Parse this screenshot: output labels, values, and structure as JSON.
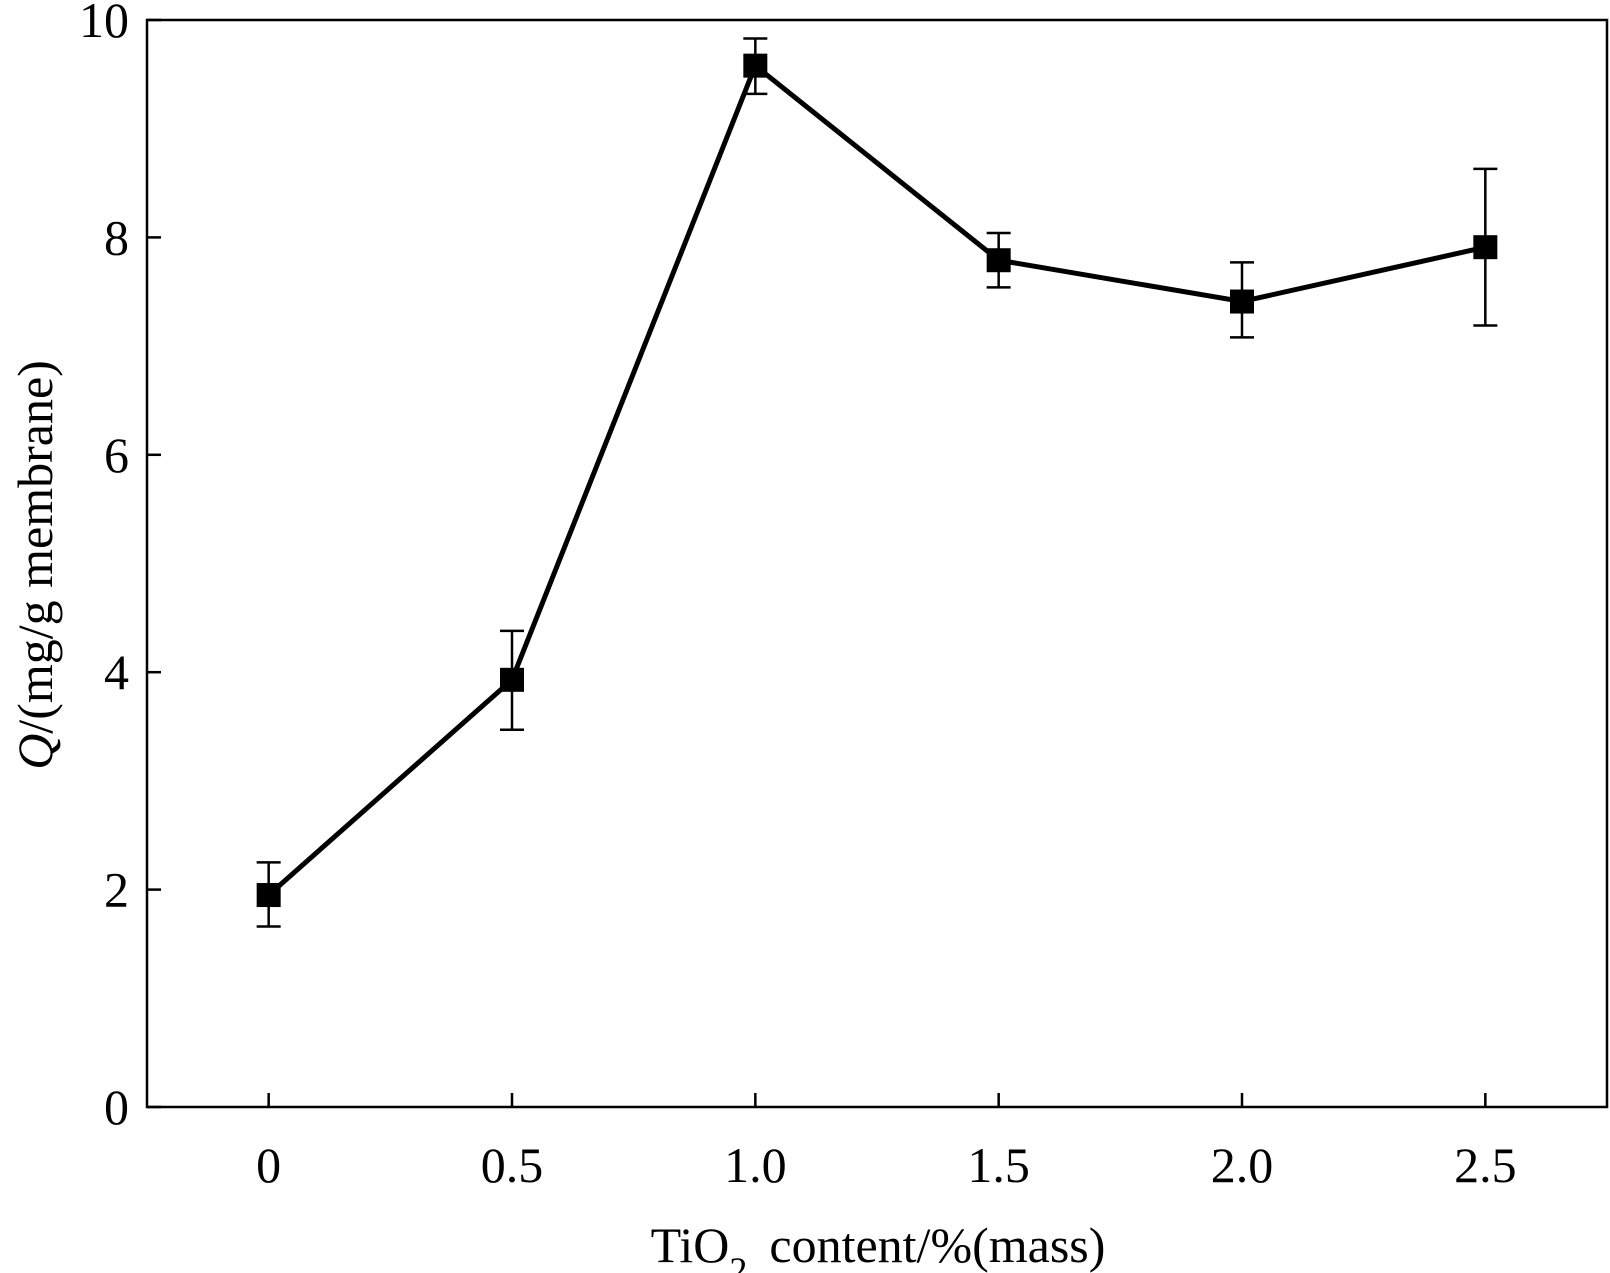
{
  "chart_data": {
    "type": "line",
    "title": "",
    "xlabel": "TiO2 content/%(mass)",
    "xlabel_parts": {
      "prefix": "TiO",
      "subscript": "2",
      "suffix": "content/%(mass)"
    },
    "ylabel": "Q/(mg/g membrane)",
    "ylabel_parts": {
      "variable": "Q",
      "unit": "/(mg/g membrane)"
    },
    "x": [
      0,
      0.5,
      1.0,
      1.5,
      2.0,
      2.5
    ],
    "x_tick_labels": [
      "0",
      "0.5",
      "1.0",
      "1.5",
      "2.0",
      "2.5"
    ],
    "y_ticks": [
      0,
      2,
      4,
      6,
      8,
      10
    ],
    "y_tick_labels": [
      "0",
      "2",
      "4",
      "6",
      "8",
      "10"
    ],
    "xlim": [
      -0.25,
      2.75
    ],
    "ylim": [
      0,
      10
    ],
    "grid": false,
    "series": [
      {
        "name": "Q",
        "values": [
          1.95,
          3.93,
          9.58,
          7.79,
          7.41,
          7.91
        ],
        "error_low": [
          1.66,
          3.47,
          9.32,
          7.54,
          7.08,
          7.19
        ],
        "error_high": [
          2.25,
          4.38,
          9.83,
          8.04,
          7.77,
          8.63
        ],
        "marker": "square",
        "color": "#000000"
      }
    ]
  }
}
